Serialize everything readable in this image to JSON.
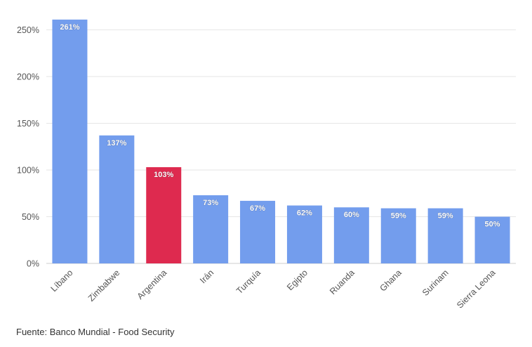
{
  "chart_data": {
    "type": "bar",
    "categories": [
      "Líbano",
      "Zimbabwe",
      "Argentina",
      "Irán",
      "Turquía",
      "Egipto",
      "Ruanda",
      "Ghana",
      "Surinam",
      "Sierra Leona"
    ],
    "values": [
      261,
      137,
      103,
      73,
      67,
      62,
      60,
      59,
      59,
      50
    ],
    "data_labels": [
      "261%",
      "137%",
      "103%",
      "73%",
      "67%",
      "62%",
      "60%",
      "59%",
      "59%",
      "50%"
    ],
    "highlight_category": "Argentina",
    "colors": {
      "default": "#739ded",
      "highlight": "#de2a4f"
    },
    "y_ticks": [
      0,
      50,
      100,
      150,
      200,
      250
    ],
    "y_tick_labels": [
      "0%",
      "50%",
      "100%",
      "150%",
      "200%",
      "250%"
    ],
    "ylim": [
      0,
      270
    ],
    "grid": true,
    "legend": "none"
  },
  "footer": {
    "source": "Fuente: Banco Mundial - Food Security"
  }
}
